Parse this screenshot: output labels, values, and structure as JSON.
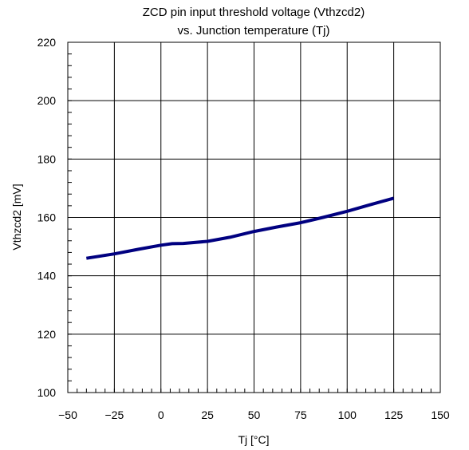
{
  "chart_data": {
    "type": "line",
    "title": [
      "ZCD pin input threshold voltage (Vthzcd2)",
      "vs. Junction temperature (Tj)"
    ],
    "xlabel": "Tj [°C]",
    "ylabel": "Vthzcd2 [mV]",
    "xlim": [
      -50,
      150
    ],
    "ylim": [
      100,
      220
    ],
    "xticks": [
      -50,
      -25,
      0,
      25,
      50,
      75,
      100,
      125,
      150
    ],
    "yticks": [
      100,
      120,
      140,
      160,
      180,
      200,
      220
    ],
    "xtick_labels": [
      "−50",
      "−25",
      "0",
      "25",
      "50",
      "75",
      "100",
      "125",
      "150"
    ],
    "ytick_labels": [
      "100",
      "120",
      "140",
      "160",
      "180",
      "200",
      "220"
    ],
    "grid": true,
    "series": [
      {
        "color": "#000080",
        "x": [
          -40,
          -25,
          -12,
          0,
          6,
          12,
          25,
          37,
          50,
          62,
          75,
          87,
          100,
          112,
          125
        ],
        "y": [
          146,
          147.5,
          149.1,
          150.5,
          151,
          151.1,
          151.8,
          153.2,
          155.2,
          156.7,
          158.2,
          160,
          162.1,
          164.3,
          166.6
        ]
      }
    ]
  }
}
